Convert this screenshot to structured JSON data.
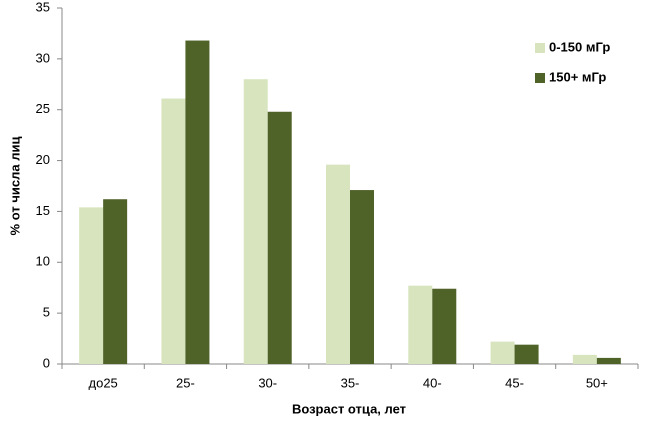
{
  "chart_data": {
    "type": "bar",
    "categories": [
      "до25",
      "25-",
      "30-",
      "35-",
      "40-",
      "45-",
      "50+"
    ],
    "series": [
      {
        "name": "0-150 мГр",
        "color": "#d7e4bd",
        "values": [
          15.4,
          26.1,
          28.0,
          19.6,
          7.7,
          2.2,
          0.9
        ]
      },
      {
        "name": "150+ мГр",
        "color": "#4f6228",
        "values": [
          16.2,
          31.8,
          24.8,
          17.1,
          7.4,
          1.9,
          0.6
        ]
      }
    ],
    "ylim": [
      0,
      35
    ],
    "yticks": [
      0,
      5,
      10,
      15,
      20,
      25,
      30,
      35
    ],
    "x_label": "Возраст отца, лет",
    "y_label": "% от числа лиц",
    "grid": false,
    "legend": "upper-right"
  }
}
